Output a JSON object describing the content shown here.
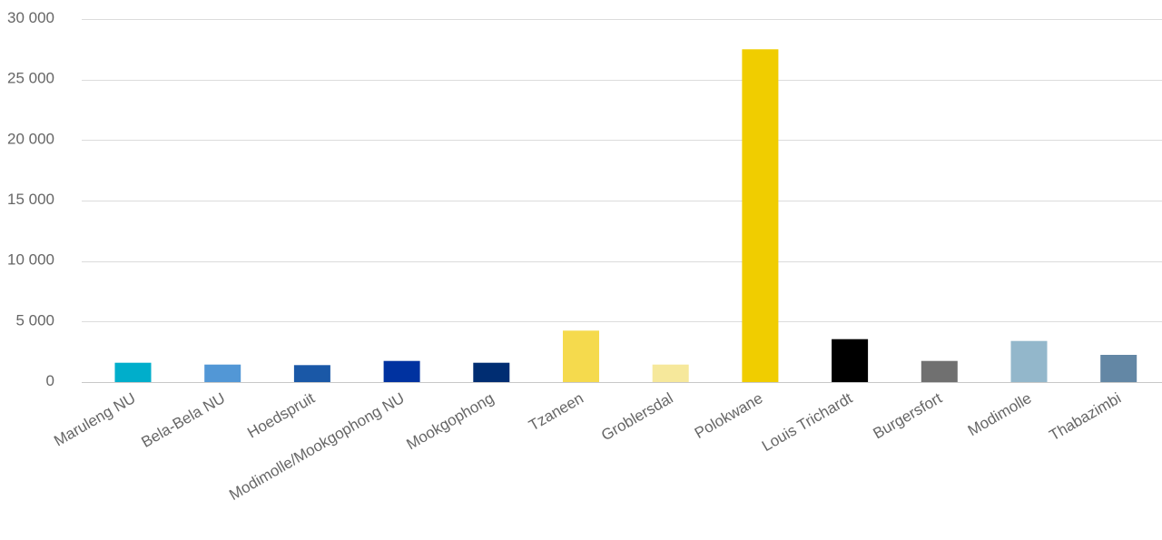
{
  "chart_data": {
    "type": "bar",
    "title": "",
    "xlabel": "",
    "ylabel": "",
    "ylim": [
      0,
      30000
    ],
    "yticks": [
      0,
      5000,
      10000,
      15000,
      20000,
      25000,
      30000
    ],
    "ytick_labels": [
      "0",
      "5 000",
      "10 000",
      "15 000",
      "20 000",
      "25 000",
      "30 000"
    ],
    "grid": true,
    "legend": "none",
    "categories": [
      "Maruleng NU",
      "Bela-Bela NU",
      "Hoedspruit",
      "Modimolle/Mookgophong NU",
      "Mookgophong",
      "Tzaneen",
      "Groblersdal",
      "Polokwane",
      "Louis Trichardt",
      "Burgersfort",
      "Modimolle",
      "Thabazimbi"
    ],
    "values": [
      1600,
      1450,
      1400,
      1750,
      1600,
      4250,
      1450,
      27500,
      3550,
      1750,
      3400,
      2250
    ],
    "colors": [
      "#00AECB",
      "#5297D6",
      "#1A58A7",
      "#0032A0",
      "#002D72",
      "#F5DA4D",
      "#F6E89B",
      "#F0CD00",
      "#000000",
      "#707070",
      "#93B7CB",
      "#6387A5"
    ]
  }
}
